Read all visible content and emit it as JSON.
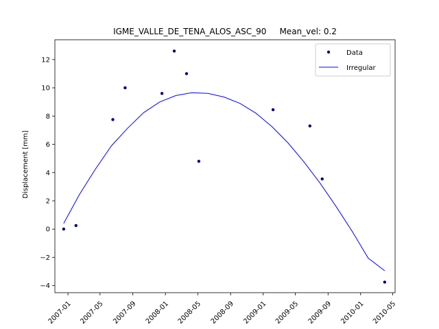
{
  "chart_data": {
    "type": "scatter",
    "title": "IGME_VALLE_DE_TENA_ALOS_ASC_90     Mean_vel: 0.2",
    "xlabel": "",
    "ylabel": "Displacement [mm]",
    "x_ticks": [
      "2007-01",
      "2007-05",
      "2007-09",
      "2008-01",
      "2008-05",
      "2008-09",
      "2009-01",
      "2009-05",
      "2009-09",
      "2010-01",
      "2010-05"
    ],
    "y_ticks": [
      "−4",
      "−2",
      "0",
      "2",
      "4",
      "6",
      "8",
      "10",
      "12"
    ],
    "xlim": [
      "2006-11-13",
      "2010-05-10"
    ],
    "ylim": [
      -4.5,
      13.4
    ],
    "grid": false,
    "legend": {
      "placement": "top-right"
    },
    "colors": {
      "data": "#00007f",
      "fit": "#0000ff"
    },
    "series": [
      {
        "name": "Data",
        "kind": "markers",
        "x": [
          "2006-12-16",
          "2007-01-31",
          "2007-06-18",
          "2007-08-03",
          "2007-12-19",
          "2008-02-03",
          "2008-03-20",
          "2008-05-05",
          "2009-02-07",
          "2009-06-25",
          "2009-08-10",
          "2010-04-01"
        ],
        "y": [
          0.0,
          0.25,
          7.75,
          10.0,
          9.6,
          12.6,
          11.0,
          4.8,
          8.45,
          7.3,
          3.55,
          -3.75
        ]
      },
      {
        "name": "Irregular",
        "kind": "line",
        "x": [
          "2006-12-16",
          "2007-02-13",
          "2007-04-14",
          "2007-06-13",
          "2007-08-13",
          "2007-10-12",
          "2007-12-11",
          "2008-02-09",
          "2008-04-09",
          "2008-06-08",
          "2008-08-07",
          "2008-10-06",
          "2008-12-05",
          "2009-02-03",
          "2009-04-04",
          "2009-06-03",
          "2009-08-02",
          "2009-10-01",
          "2009-11-30",
          "2010-01-29",
          "2010-04-01"
        ],
        "y": [
          0.4,
          2.45,
          4.25,
          5.9,
          7.15,
          8.25,
          9.0,
          9.45,
          9.65,
          9.6,
          9.35,
          8.9,
          8.2,
          7.25,
          6.1,
          4.75,
          3.25,
          1.6,
          -0.15,
          -2.05,
          -2.95
        ]
      }
    ]
  }
}
